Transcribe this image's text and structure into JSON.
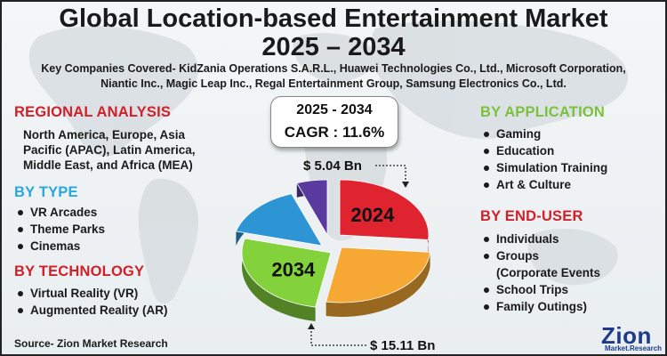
{
  "title_line1": "Global Location-based Entertainment Market",
  "title_line2": "2025 – 2034",
  "companies_line1": "Key Companies Covered- KidZania Operations S.A.R.L., Huawei Technologies Co., Ltd., Microsoft Corporation,",
  "companies_line2": "Niantic Inc., Magic Leap Inc., Regal Entertainment Group, Samsung Electronics Co., Ltd.",
  "regional": {
    "heading": "REGIONAL ANALYSIS",
    "lines": [
      "North America, Europe, Asia",
      "Pacific (APAC), Latin America,",
      "Middle East, and Africa (MEA)"
    ]
  },
  "by_type": {
    "heading": "BY TYPE",
    "items": [
      "VR Arcades",
      "Theme Parks",
      "Cinemas"
    ]
  },
  "by_technology": {
    "heading": "BY TECHNOLOGY",
    "items": [
      "Virtual Reality (VR)",
      "Augmented Reality (AR)"
    ]
  },
  "by_application": {
    "heading": "BY APPLICATION",
    "items": [
      "Gaming",
      "Education",
      "Simulation Training",
      "Art & Culture"
    ]
  },
  "by_end_user": {
    "heading": "BY END-USER",
    "items": [
      "Individuals",
      "Groups",
      "(Corporate Events",
      "School Trips",
      "Family Outings)"
    ]
  },
  "cagr_box": {
    "range": "2025 - 2034",
    "cagr": "CAGR : 11.6%"
  },
  "source": "Source- Zion Market Research",
  "logo": {
    "name": "Zion",
    "sub": "Market.Research"
  },
  "colors": {
    "section_red": "#d0202a",
    "section_blue": "#2aa7e0",
    "section_green": "#7cc13d",
    "logo_blue": "#1e3a8a"
  },
  "chart_data": {
    "type": "pie",
    "style": "3d exploded",
    "slices": [
      {
        "label": "2024",
        "value_label": "$ 5.04 Bn",
        "color": "#e0242f"
      },
      {
        "label": "",
        "color": "#f7a834"
      },
      {
        "label": "2034",
        "value_label": "$ 15.11 Bn",
        "color": "#83d13b"
      },
      {
        "label": "",
        "color": "#2e95d5"
      },
      {
        "label": "",
        "color": "#5b3aa0"
      }
    ]
  }
}
